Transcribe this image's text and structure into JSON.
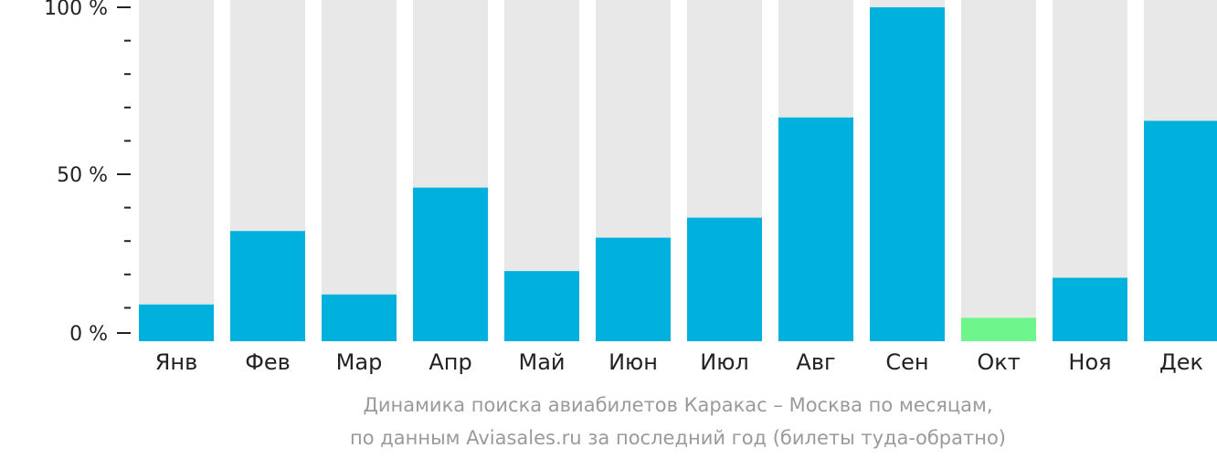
{
  "chart_data": {
    "type": "bar",
    "categories": [
      "Янв",
      "Фев",
      "Мар",
      "Апр",
      "Май",
      "Июн",
      "Июл",
      "Авг",
      "Сен",
      "Окт",
      "Ноя",
      "Дек"
    ],
    "values": [
      11,
      33,
      14,
      46,
      21,
      31,
      37,
      67,
      100,
      7,
      19,
      66
    ],
    "ylim": [
      0,
      100
    ],
    "y_ticks": [
      "0 %",
      "50 %",
      "100 %"
    ],
    "highlight_index": 9,
    "colors": {
      "bar": "#00b1dd",
      "highlight": "#6ef58c",
      "track": "#e8e8e8",
      "axis": "#222222",
      "caption": "#9a9a9a"
    },
    "caption": [
      "Динамика поиска авиабилетов Каракас – Москва по месяцам,",
      "по данным Aviasales.ru за последний год (билеты туда-обратно)"
    ]
  }
}
